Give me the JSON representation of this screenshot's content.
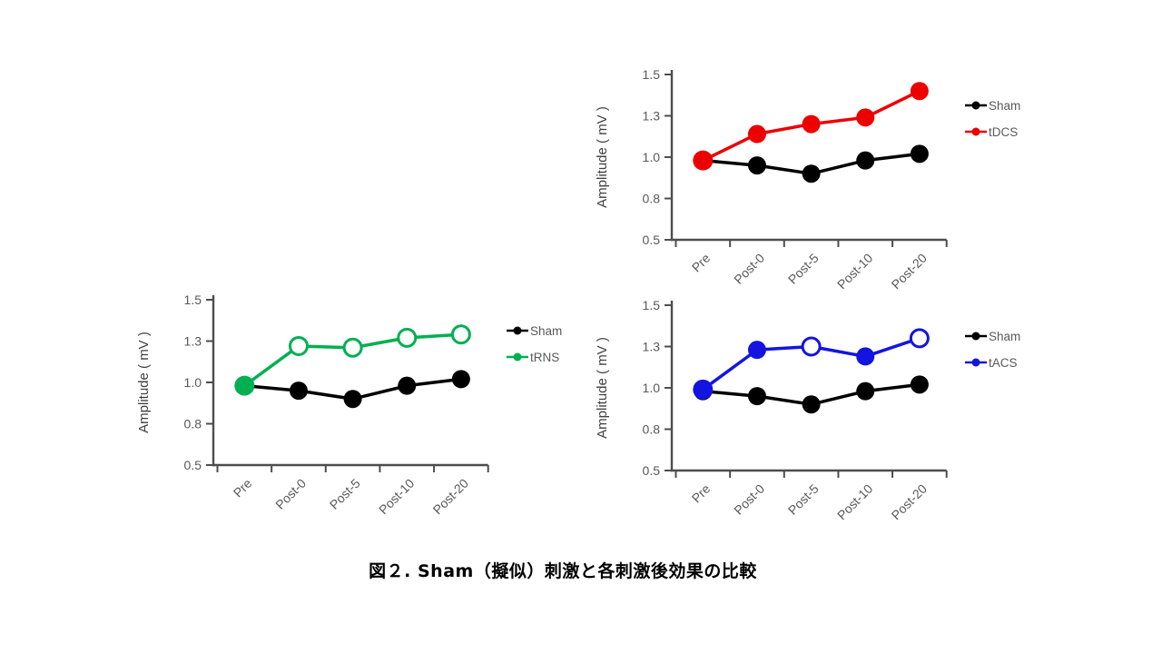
{
  "figure_caption": "図２. Sham（擬似）刺激と各刺激後効果の比較",
  "colors": {
    "sham": "#000000",
    "tdcs": "#ec0000",
    "trns": "#00b050",
    "tacs": "#1414e0",
    "axis": "#4d4d4d",
    "tick_label": "#595959",
    "legend_label": "#595959",
    "y_title": "#404040",
    "open_marker_fill": "#ffffff"
  },
  "chart_data": [
    {
      "id": "tdcs",
      "type": "line",
      "title": "",
      "categories": [
        "Pre",
        "Post-0",
        "Post-5",
        "Post-10",
        "Post-20"
      ],
      "ylabel": "Amplitude ( mV )",
      "ylim": [
        0.5,
        1.5
      ],
      "y_ticks": [
        {
          "value": 1.5,
          "label": "1.5"
        },
        {
          "value": 1.25,
          "label": "1.3"
        },
        {
          "value": 1.0,
          "label": "1.0"
        },
        {
          "value": 0.75,
          "label": "0.8"
        },
        {
          "value": 0.5,
          "label": "0.5"
        }
      ],
      "grid": false,
      "legend_position": "right",
      "series": [
        {
          "name": "Sham",
          "color_key": "sham",
          "values": [
            0.98,
            0.95,
            0.9,
            0.98,
            1.02
          ],
          "filled": [
            true,
            true,
            true,
            true,
            true
          ]
        },
        {
          "name": "tDCS",
          "color_key": "tdcs",
          "values": [
            0.98,
            1.14,
            1.2,
            1.24,
            1.4
          ],
          "filled": [
            true,
            true,
            true,
            true,
            true
          ]
        }
      ]
    },
    {
      "id": "trns",
      "type": "line",
      "title": "",
      "categories": [
        "Pre",
        "Post-0",
        "Post-5",
        "Post-10",
        "Post-20"
      ],
      "ylabel": "Amplitude ( mV )",
      "ylim": [
        0.5,
        1.5
      ],
      "y_ticks": [
        {
          "value": 1.5,
          "label": "1.5"
        },
        {
          "value": 1.25,
          "label": "1.3"
        },
        {
          "value": 1.0,
          "label": "1.0"
        },
        {
          "value": 0.75,
          "label": "0.8"
        },
        {
          "value": 0.5,
          "label": "0.5"
        }
      ],
      "grid": false,
      "legend_position": "right",
      "series": [
        {
          "name": "Sham",
          "color_key": "sham",
          "values": [
            0.98,
            0.95,
            0.9,
            0.98,
            1.02
          ],
          "filled": [
            true,
            true,
            true,
            true,
            true
          ]
        },
        {
          "name": "tRNS",
          "color_key": "trns",
          "values": [
            0.98,
            1.22,
            1.21,
            1.27,
            1.29
          ],
          "filled": [
            true,
            false,
            false,
            false,
            false
          ]
        }
      ]
    },
    {
      "id": "tacs",
      "type": "line",
      "title": "",
      "categories": [
        "Pre",
        "Post-0",
        "Post-5",
        "Post-10",
        "Post-20"
      ],
      "ylabel": "Amplitude ( mV )",
      "ylim": [
        0.5,
        1.5
      ],
      "y_ticks": [
        {
          "value": 1.5,
          "label": "1.5"
        },
        {
          "value": 1.25,
          "label": "1.3"
        },
        {
          "value": 1.0,
          "label": "1.0"
        },
        {
          "value": 0.75,
          "label": "0.8"
        },
        {
          "value": 0.5,
          "label": "0.5"
        }
      ],
      "grid": false,
      "legend_position": "right",
      "series": [
        {
          "name": "Sham",
          "color_key": "sham",
          "values": [
            0.98,
            0.95,
            0.9,
            0.98,
            1.02
          ],
          "filled": [
            true,
            true,
            true,
            true,
            true
          ]
        },
        {
          "name": "tACS",
          "color_key": "tacs",
          "values": [
            0.99,
            1.23,
            1.25,
            1.19,
            1.3
          ],
          "filled": [
            true,
            true,
            false,
            true,
            false
          ]
        }
      ]
    }
  ]
}
